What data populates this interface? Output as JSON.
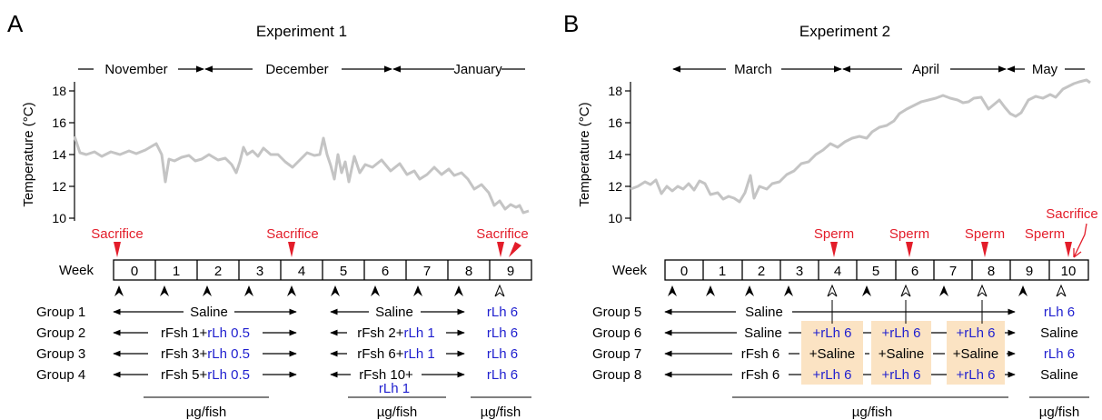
{
  "panels": [
    {
      "letter": "A",
      "title": "Experiment 1",
      "months": [
        "November",
        "December",
        "January"
      ],
      "y_axis": {
        "label": "Temperature (°C)",
        "ticks": [
          "10",
          "12",
          "14",
          "16",
          "18"
        ]
      },
      "sacrifice_label": "Sacrifice",
      "week_label": "Week",
      "weeks": [
        "0",
        "1",
        "2",
        "3",
        "4",
        "5",
        "6",
        "7",
        "8",
        "9"
      ],
      "groups": [
        {
          "name": "Group 1",
          "left": [
            {
              "t": "Saline",
              "c": "black"
            }
          ],
          "mid": [
            {
              "t": "Saline",
              "c": "black"
            }
          ],
          "end": [
            {
              "t": "rLh 6",
              "c": "blue"
            }
          ]
        },
        {
          "name": "Group 2",
          "left": [
            {
              "t": "rFsh 1+",
              "c": "black"
            },
            {
              "t": "rLh 0.5",
              "c": "blue"
            }
          ],
          "mid": [
            {
              "t": "rFsh 2+",
              "c": "black"
            },
            {
              "t": "rLh 1",
              "c": "blue"
            }
          ],
          "end": [
            {
              "t": "rLh 6",
              "c": "blue"
            }
          ]
        },
        {
          "name": "Group 3",
          "left": [
            {
              "t": "rFsh 3+",
              "c": "black"
            },
            {
              "t": "rLh 0.5",
              "c": "blue"
            }
          ],
          "mid": [
            {
              "t": "rFsh 6+",
              "c": "black"
            },
            {
              "t": "rLh 1",
              "c": "blue"
            }
          ],
          "end": [
            {
              "t": "rLh 6",
              "c": "blue"
            }
          ]
        },
        {
          "name": "Group 4",
          "left": [
            {
              "t": "rFsh 5+",
              "c": "black"
            },
            {
              "t": "rLh 0.5",
              "c": "blue"
            }
          ],
          "mid": [
            {
              "t": "rFsh 10+",
              "c": "black"
            }
          ],
          "end": [
            {
              "t": "rLh 6",
              "c": "blue"
            }
          ]
        }
      ],
      "group4_extra": "rLh 1",
      "unit_labels": [
        "µg/fish",
        "µg/fish",
        "µg/fish"
      ]
    },
    {
      "letter": "B",
      "title": "Experiment 2",
      "months": [
        "March",
        "April",
        "May"
      ],
      "y_axis": {
        "label": "Temperature (°C)",
        "ticks": [
          "10",
          "12",
          "14",
          "16",
          "18"
        ]
      },
      "sperm_label": "Sperm",
      "sacrifice_label": "Sacrifice",
      "week_label": "Week",
      "weeks": [
        "0",
        "1",
        "2",
        "3",
        "4",
        "5",
        "6",
        "7",
        "8",
        "9",
        "10"
      ],
      "groups": [
        {
          "name": "Group 5",
          "base": "Saline",
          "boxes": [],
          "end": {
            "t": "rLh 6",
            "c": "blue"
          }
        },
        {
          "name": "Group 6",
          "base": "Saline",
          "boxes": [
            "+rLh 6",
            "+rLh 6",
            "+rLh 6"
          ],
          "box_color": "blue",
          "end": {
            "t": "Saline",
            "c": "black"
          }
        },
        {
          "name": "Group 7",
          "base": "rFsh 6",
          "boxes": [
            "+Saline",
            "+Saline",
            "+Saline"
          ],
          "box_color": "black",
          "end": {
            "t": "rLh 6",
            "c": "blue"
          }
        },
        {
          "name": "Group 8",
          "base": "rFsh 6",
          "boxes": [
            "+rLh 6",
            "+rLh 6",
            "+rLh 6"
          ],
          "box_color": "blue",
          "end": {
            "t": "Saline",
            "c": "black"
          }
        }
      ],
      "unit_labels": [
        "µg/fish",
        "µg/fish"
      ]
    }
  ],
  "colors": {
    "red": "#e31d2a",
    "blue": "#1f1fcf",
    "temp_line": "#c4c4c4",
    "box_fill": "#fbe3c3"
  }
}
